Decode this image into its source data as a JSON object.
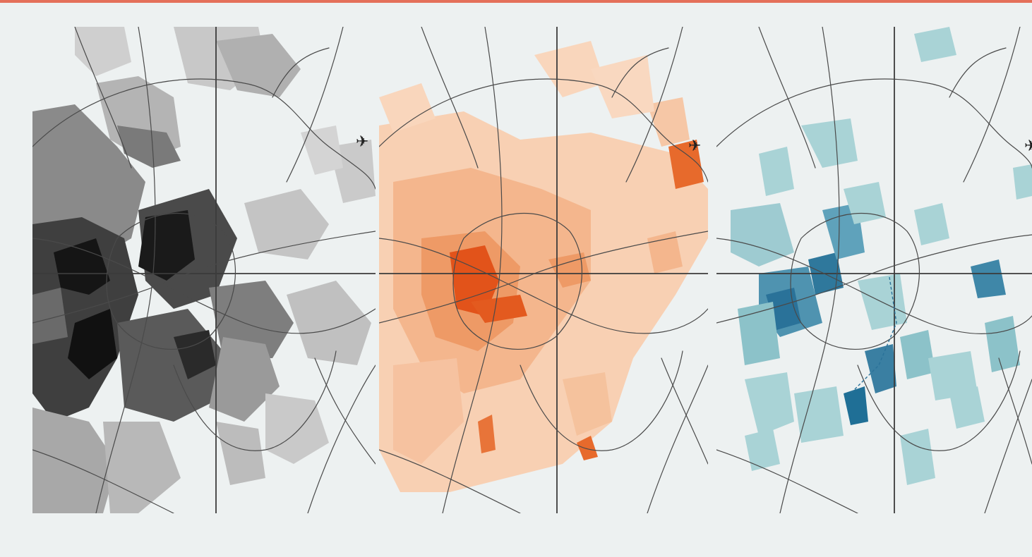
{
  "figure": {
    "panels": [
      {
        "id": "grey",
        "color_low": "#c9c9c9",
        "color_mid": "#6e6e6e",
        "color_high": "#141414"
      },
      {
        "id": "orange",
        "color_low": "#f6c7a6",
        "color_mid": "#ee9a66",
        "color_high": "#e2531a"
      },
      {
        "id": "blue",
        "color_low": "#a9d3d6",
        "color_mid": "#6fb0c0",
        "color_high": "#1f6f96"
      }
    ],
    "accent_rule_color": "#e4705a",
    "background_color": "#edf1f1",
    "icons": [
      "airport-icon"
    ]
  }
}
